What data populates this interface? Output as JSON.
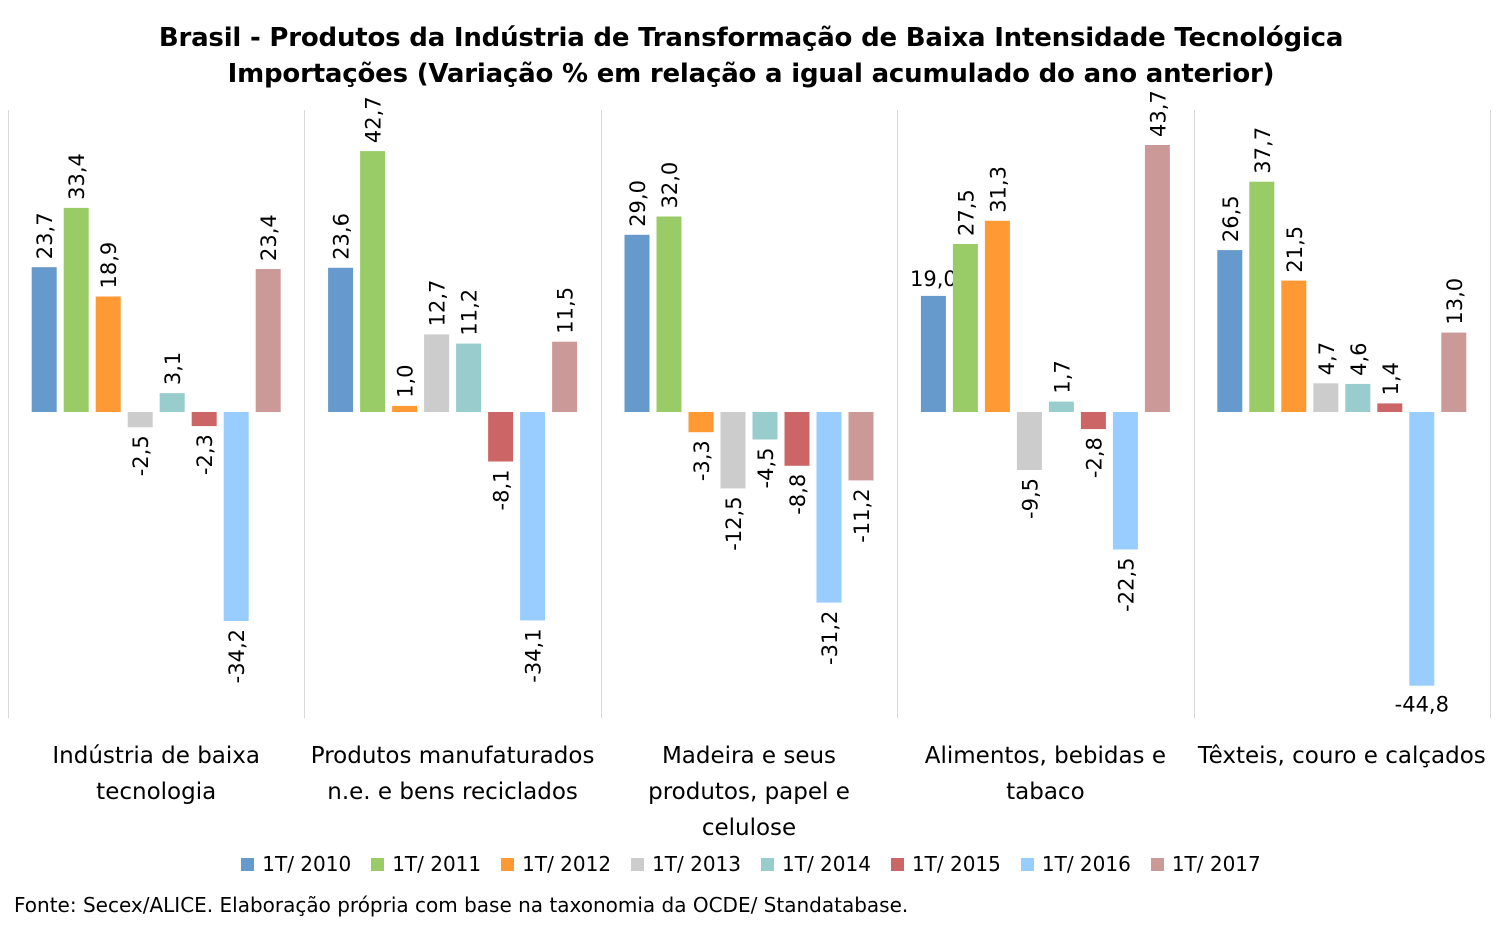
{
  "chart_data": {
    "type": "bar",
    "title": [
      "Brasil - Produtos da Indústria de Transformação de Baixa Intensidade Tecnológica",
      "Importações (Variação % em relação a igual acumulado do ano anterior)"
    ],
    "categories": [
      [
        "Indústria de baixa",
        "tecnologia"
      ],
      [
        "Produtos manufaturados",
        "n.e. e bens reciclados"
      ],
      [
        "Madeira e seus",
        "produtos, papel e",
        "celulose"
      ],
      [
        "Alimentos, bebidas e",
        "tabaco"
      ],
      [
        "Têxteis, couro e calçados"
      ]
    ],
    "series": [
      {
        "name": "1T/ 2010",
        "color": "#6699CC",
        "values": [
          23.7,
          23.6,
          29.0,
          19.0,
          26.5
        ],
        "labels": [
          "23,7",
          "23,6",
          "29,0",
          "19,0",
          "26,5"
        ]
      },
      {
        "name": "1T/ 2011",
        "color": "#99CC66",
        "values": [
          33.4,
          42.7,
          32.0,
          27.5,
          37.7
        ],
        "labels": [
          "33,4",
          "42,7",
          "32,0",
          "27,5",
          "37,7"
        ]
      },
      {
        "name": "1T/ 2012",
        "color": "#FF9933",
        "values": [
          18.9,
          1.0,
          -3.3,
          31.3,
          21.5
        ],
        "labels": [
          "18,9",
          "1,0",
          "-3,3",
          "31,3",
          "21,5"
        ]
      },
      {
        "name": "1T/ 2013",
        "color": "#CCCCCC",
        "values": [
          -2.5,
          12.7,
          -12.5,
          -9.5,
          4.7
        ],
        "labels": [
          "-2,5",
          "12,7",
          "-12,5",
          "-9,5",
          "4,7"
        ]
      },
      {
        "name": "1T/ 2014",
        "color": "#99CCCC",
        "values": [
          3.1,
          11.2,
          -4.5,
          1.7,
          4.6
        ],
        "labels": [
          "3,1",
          "11,2",
          "-4,5",
          "1,7",
          "4,6"
        ]
      },
      {
        "name": "1T/ 2015",
        "color": "#CC6666",
        "values": [
          -2.3,
          -8.1,
          -8.8,
          -2.8,
          1.4
        ],
        "labels": [
          "-2,3",
          "-8,1",
          "-8,8",
          "-2,8",
          "1,4"
        ]
      },
      {
        "name": "1T/ 2016",
        "color": "#99CCFF",
        "values": [
          -34.2,
          -34.1,
          -31.2,
          -22.5,
          -44.8
        ],
        "labels": [
          "-34,2",
          "-34,1",
          "-31,2",
          "-22,5",
          "-44,8"
        ]
      },
      {
        "name": "1T/ 2017",
        "color": "#CC9999",
        "values": [
          23.4,
          11.5,
          -11.2,
          43.7,
          13.0
        ],
        "labels": [
          "23,4",
          "11,5",
          "-11,2",
          "43,7",
          "13,0"
        ]
      }
    ],
    "horizontal_label_bars": [
      [
        3,
        0
      ],
      [
        4,
        6
      ]
    ],
    "gridlines": false,
    "legend_position": "bottom"
  },
  "source": "Fonte: Secex/ALICE. Elaboração própria com base na taxonomia da OCDE/ Standatabase."
}
